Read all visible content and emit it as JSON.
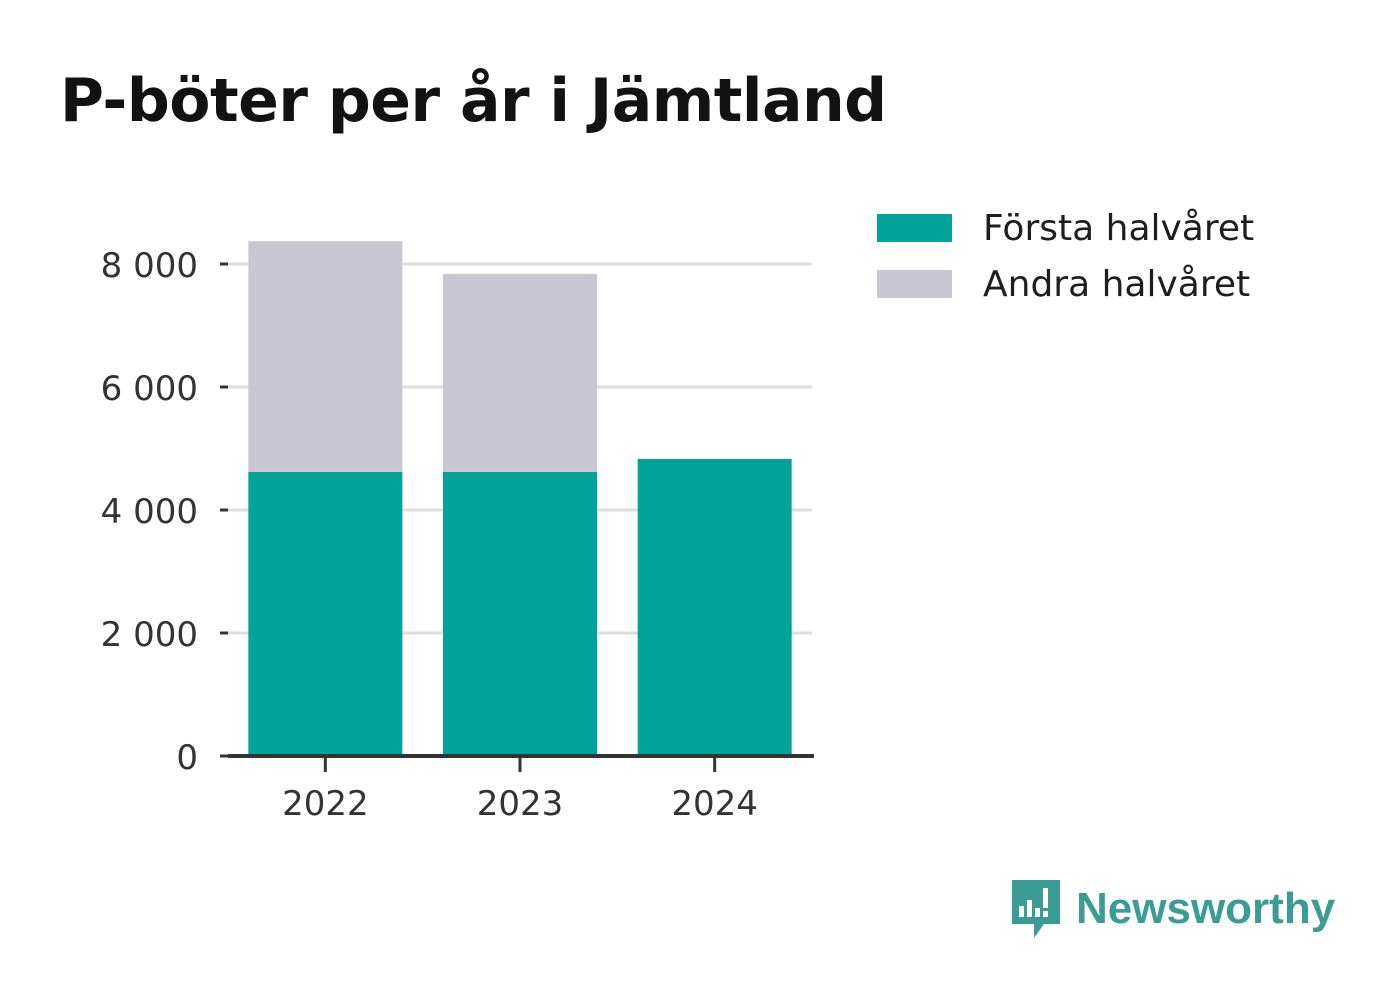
{
  "chart_data": {
    "type": "bar",
    "stacked": true,
    "title": "P-böter per år i Jämtland",
    "categories": [
      "2022",
      "2023",
      "2024"
    ],
    "series": [
      {
        "name": "Första halvåret",
        "values": [
          4620,
          4620,
          4830
        ],
        "color": "#00a39a"
      },
      {
        "name": "Andra halvåret",
        "values": [
          3750,
          3220,
          0
        ],
        "color": "#c7c6d1"
      }
    ],
    "ylim": [
      0,
      8000
    ],
    "yticks": [
      0,
      2000,
      4000,
      6000,
      8000
    ],
    "ytick_labels": [
      "0",
      "2 000",
      "4 000",
      "6 000",
      "8 000"
    ],
    "xlabel": "",
    "ylabel": "",
    "grid": true,
    "legend_position": "right"
  },
  "brand": {
    "name": "Newsworthy",
    "icon": "newsworthy-logo-icon",
    "color": "#3b9c95"
  }
}
